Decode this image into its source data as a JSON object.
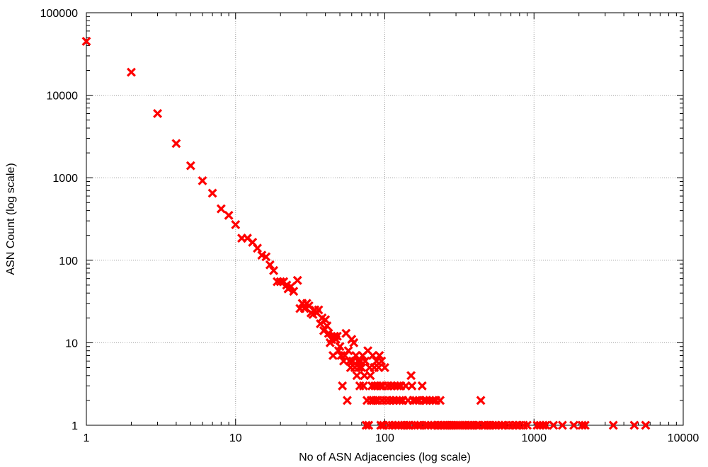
{
  "chart_data": {
    "type": "scatter",
    "title": "",
    "xlabel": "No of ASN Adjacencies (log scale)",
    "ylabel": "ASN Count (log scale)",
    "xscale": "log",
    "yscale": "log",
    "xlim": [
      1,
      10000
    ],
    "ylim": [
      1,
      100000
    ],
    "grid": true,
    "marker": "x",
    "marker_color": "#ff0000",
    "x_ticks": [
      {
        "value": 1,
        "label": "1"
      },
      {
        "value": 10,
        "label": "10"
      },
      {
        "value": 100,
        "label": "100"
      },
      {
        "value": 1000,
        "label": "1000"
      },
      {
        "value": 10000,
        "label": "10000"
      }
    ],
    "y_ticks": [
      {
        "value": 1,
        "label": "1"
      },
      {
        "value": 10,
        "label": "10"
      },
      {
        "value": 100,
        "label": "100"
      },
      {
        "value": 1000,
        "label": "1000"
      },
      {
        "value": 10000,
        "label": "10000"
      },
      {
        "value": 100000,
        "label": "100000"
      }
    ],
    "points": [
      [
        1,
        45000
      ],
      [
        2,
        19000
      ],
      [
        3,
        6000
      ],
      [
        4,
        2600
      ],
      [
        5,
        1400
      ],
      [
        6,
        920
      ],
      [
        7,
        650
      ],
      [
        8,
        420
      ],
      [
        9,
        350
      ],
      [
        10,
        270
      ],
      [
        11,
        185
      ],
      [
        12,
        185
      ],
      [
        13,
        165
      ],
      [
        14,
        140
      ],
      [
        15,
        115
      ],
      [
        16,
        110
      ],
      [
        17,
        88
      ],
      [
        18,
        75
      ],
      [
        19,
        55
      ],
      [
        20,
        55
      ],
      [
        21,
        55
      ],
      [
        22,
        50
      ],
      [
        22.5,
        45
      ],
      [
        23.5,
        48
      ],
      [
        24.5,
        42
      ],
      [
        26,
        57
      ],
      [
        27,
        26
      ],
      [
        28,
        30
      ],
      [
        29,
        26
      ],
      [
        30,
        30
      ],
      [
        31,
        28
      ],
      [
        32,
        23
      ],
      [
        33,
        22
      ],
      [
        34,
        25
      ],
      [
        35,
        23
      ],
      [
        36,
        25
      ],
      [
        37,
        17
      ],
      [
        38,
        20
      ],
      [
        39,
        14
      ],
      [
        40,
        19
      ],
      [
        41,
        16
      ],
      [
        42,
        13
      ],
      [
        43,
        10
      ],
      [
        44,
        11
      ],
      [
        45,
        7
      ],
      [
        46,
        12
      ],
      [
        47,
        11
      ],
      [
        48,
        12
      ],
      [
        49,
        8
      ],
      [
        50,
        9
      ],
      [
        51,
        7
      ],
      [
        52,
        3
      ],
      [
        53,
        6
      ],
      [
        54,
        7
      ],
      [
        55,
        13
      ],
      [
        56,
        2
      ],
      [
        57,
        8
      ],
      [
        58,
        6
      ],
      [
        59,
        5
      ],
      [
        60,
        11
      ],
      [
        61,
        6
      ],
      [
        62,
        10
      ],
      [
        63,
        5
      ],
      [
        64,
        7
      ],
      [
        65,
        4
      ],
      [
        66,
        6
      ],
      [
        67,
        5
      ],
      [
        68,
        3
      ],
      [
        69,
        6
      ],
      [
        70,
        5
      ],
      [
        71,
        7
      ],
      [
        72,
        3
      ],
      [
        73,
        4
      ],
      [
        74,
        6
      ],
      [
        75,
        1
      ],
      [
        76,
        2
      ],
      [
        77,
        8
      ],
      [
        78,
        1
      ],
      [
        79,
        5
      ],
      [
        80,
        4
      ],
      [
        81,
        2
      ],
      [
        82,
        3
      ],
      [
        83,
        7
      ],
      [
        84,
        2
      ],
      [
        85,
        5
      ],
      [
        86,
        3
      ],
      [
        87,
        2
      ],
      [
        88,
        6
      ],
      [
        89,
        3
      ],
      [
        90,
        2
      ],
      [
        91,
        5
      ],
      [
        92,
        7
      ],
      [
        93,
        3
      ],
      [
        94,
        1
      ],
      [
        95,
        6
      ],
      [
        96,
        2
      ],
      [
        97,
        3
      ],
      [
        98,
        1
      ],
      [
        100,
        5
      ],
      [
        102,
        2
      ],
      [
        104,
        3
      ],
      [
        106,
        1
      ],
      [
        108,
        2
      ],
      [
        110,
        3
      ],
      [
        112,
        1
      ],
      [
        114,
        2
      ],
      [
        116,
        3
      ],
      [
        118,
        1
      ],
      [
        120,
        2
      ],
      [
        122,
        3
      ],
      [
        124,
        1
      ],
      [
        126,
        2
      ],
      [
        128,
        3
      ],
      [
        130,
        1
      ],
      [
        132,
        2
      ],
      [
        135,
        1
      ],
      [
        138,
        3
      ],
      [
        140,
        1
      ],
      [
        143,
        2
      ],
      [
        146,
        1
      ],
      [
        150,
        4
      ],
      [
        152,
        3
      ],
      [
        155,
        2
      ],
      [
        158,
        1
      ],
      [
        162,
        2
      ],
      [
        166,
        1
      ],
      [
        170,
        2
      ],
      [
        174,
        1
      ],
      [
        178,
        3
      ],
      [
        182,
        2
      ],
      [
        186,
        1
      ],
      [
        190,
        2
      ],
      [
        195,
        1
      ],
      [
        200,
        2
      ],
      [
        205,
        1
      ],
      [
        210,
        2
      ],
      [
        215,
        1
      ],
      [
        220,
        2
      ],
      [
        225,
        1
      ],
      [
        230,
        1
      ],
      [
        235,
        2
      ],
      [
        240,
        1
      ],
      [
        250,
        1
      ],
      [
        260,
        1
      ],
      [
        270,
        1
      ],
      [
        280,
        1
      ],
      [
        290,
        1
      ],
      [
        300,
        1
      ],
      [
        310,
        1
      ],
      [
        320,
        1
      ],
      [
        330,
        1
      ],
      [
        340,
        1
      ],
      [
        350,
        1
      ],
      [
        365,
        1
      ],
      [
        380,
        1
      ],
      [
        395,
        1
      ],
      [
        410,
        1
      ],
      [
        425,
        1
      ],
      [
        440,
        2
      ],
      [
        455,
        1
      ],
      [
        470,
        1
      ],
      [
        490,
        1
      ],
      [
        510,
        1
      ],
      [
        530,
        1
      ],
      [
        550,
        1
      ],
      [
        580,
        1
      ],
      [
        610,
        1
      ],
      [
        640,
        1
      ],
      [
        680,
        1
      ],
      [
        720,
        1
      ],
      [
        760,
        1
      ],
      [
        800,
        1
      ],
      [
        850,
        1
      ],
      [
        900,
        1
      ],
      [
        1050,
        1
      ],
      [
        1100,
        1
      ],
      [
        1150,
        1
      ],
      [
        1200,
        1
      ],
      [
        1350,
        1
      ],
      [
        1550,
        1
      ],
      [
        1850,
        1
      ],
      [
        2100,
        1
      ],
      [
        2200,
        1
      ],
      [
        3400,
        1
      ],
      [
        4700,
        1
      ],
      [
        5600,
        1
      ]
    ]
  }
}
